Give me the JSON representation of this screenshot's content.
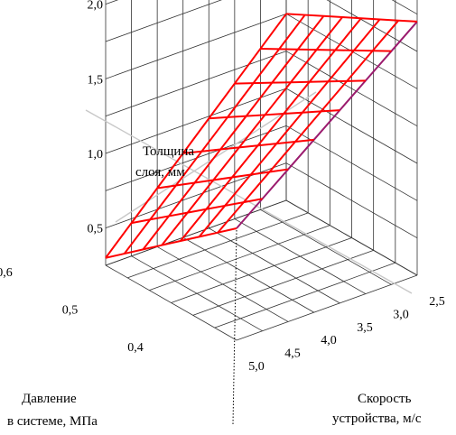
{
  "chart_data": {
    "type": "surface",
    "zlabel": [
      "Толщина",
      "слоя, мм"
    ],
    "xlabel": [
      "Давление",
      "в системе, МПа"
    ],
    "ylabel": [
      "Скорость",
      "устройства, м/с"
    ],
    "z_ticks": [
      "0,5",
      "1,0",
      "1,5",
      "2,0"
    ],
    "x_ticks": [
      "0,4",
      "0,5",
      "0,6"
    ],
    "y_ticks": [
      "2,5",
      "3,0",
      "3,5",
      "4,0",
      "4,5",
      "5,0"
    ],
    "zlim": [
      0.25,
      2.5
    ],
    "xlim": [
      0.4,
      0.6
    ],
    "ylim": [
      2.5,
      5.0
    ],
    "grid": true,
    "surface_color": "#ff0000",
    "edge_color": "#9b1b6e",
    "surface_grid": [
      7,
      7
    ],
    "corners": [
      {
        "x": 0.4,
        "y": 5.0,
        "z": 1.0
      },
      {
        "x": 0.4,
        "y": 2.5,
        "z": 1.95
      },
      {
        "x": 0.6,
        "y": 2.5,
        "z": 1.5
      },
      {
        "x": 0.6,
        "y": 5.0,
        "z": 0.3
      }
    ]
  }
}
